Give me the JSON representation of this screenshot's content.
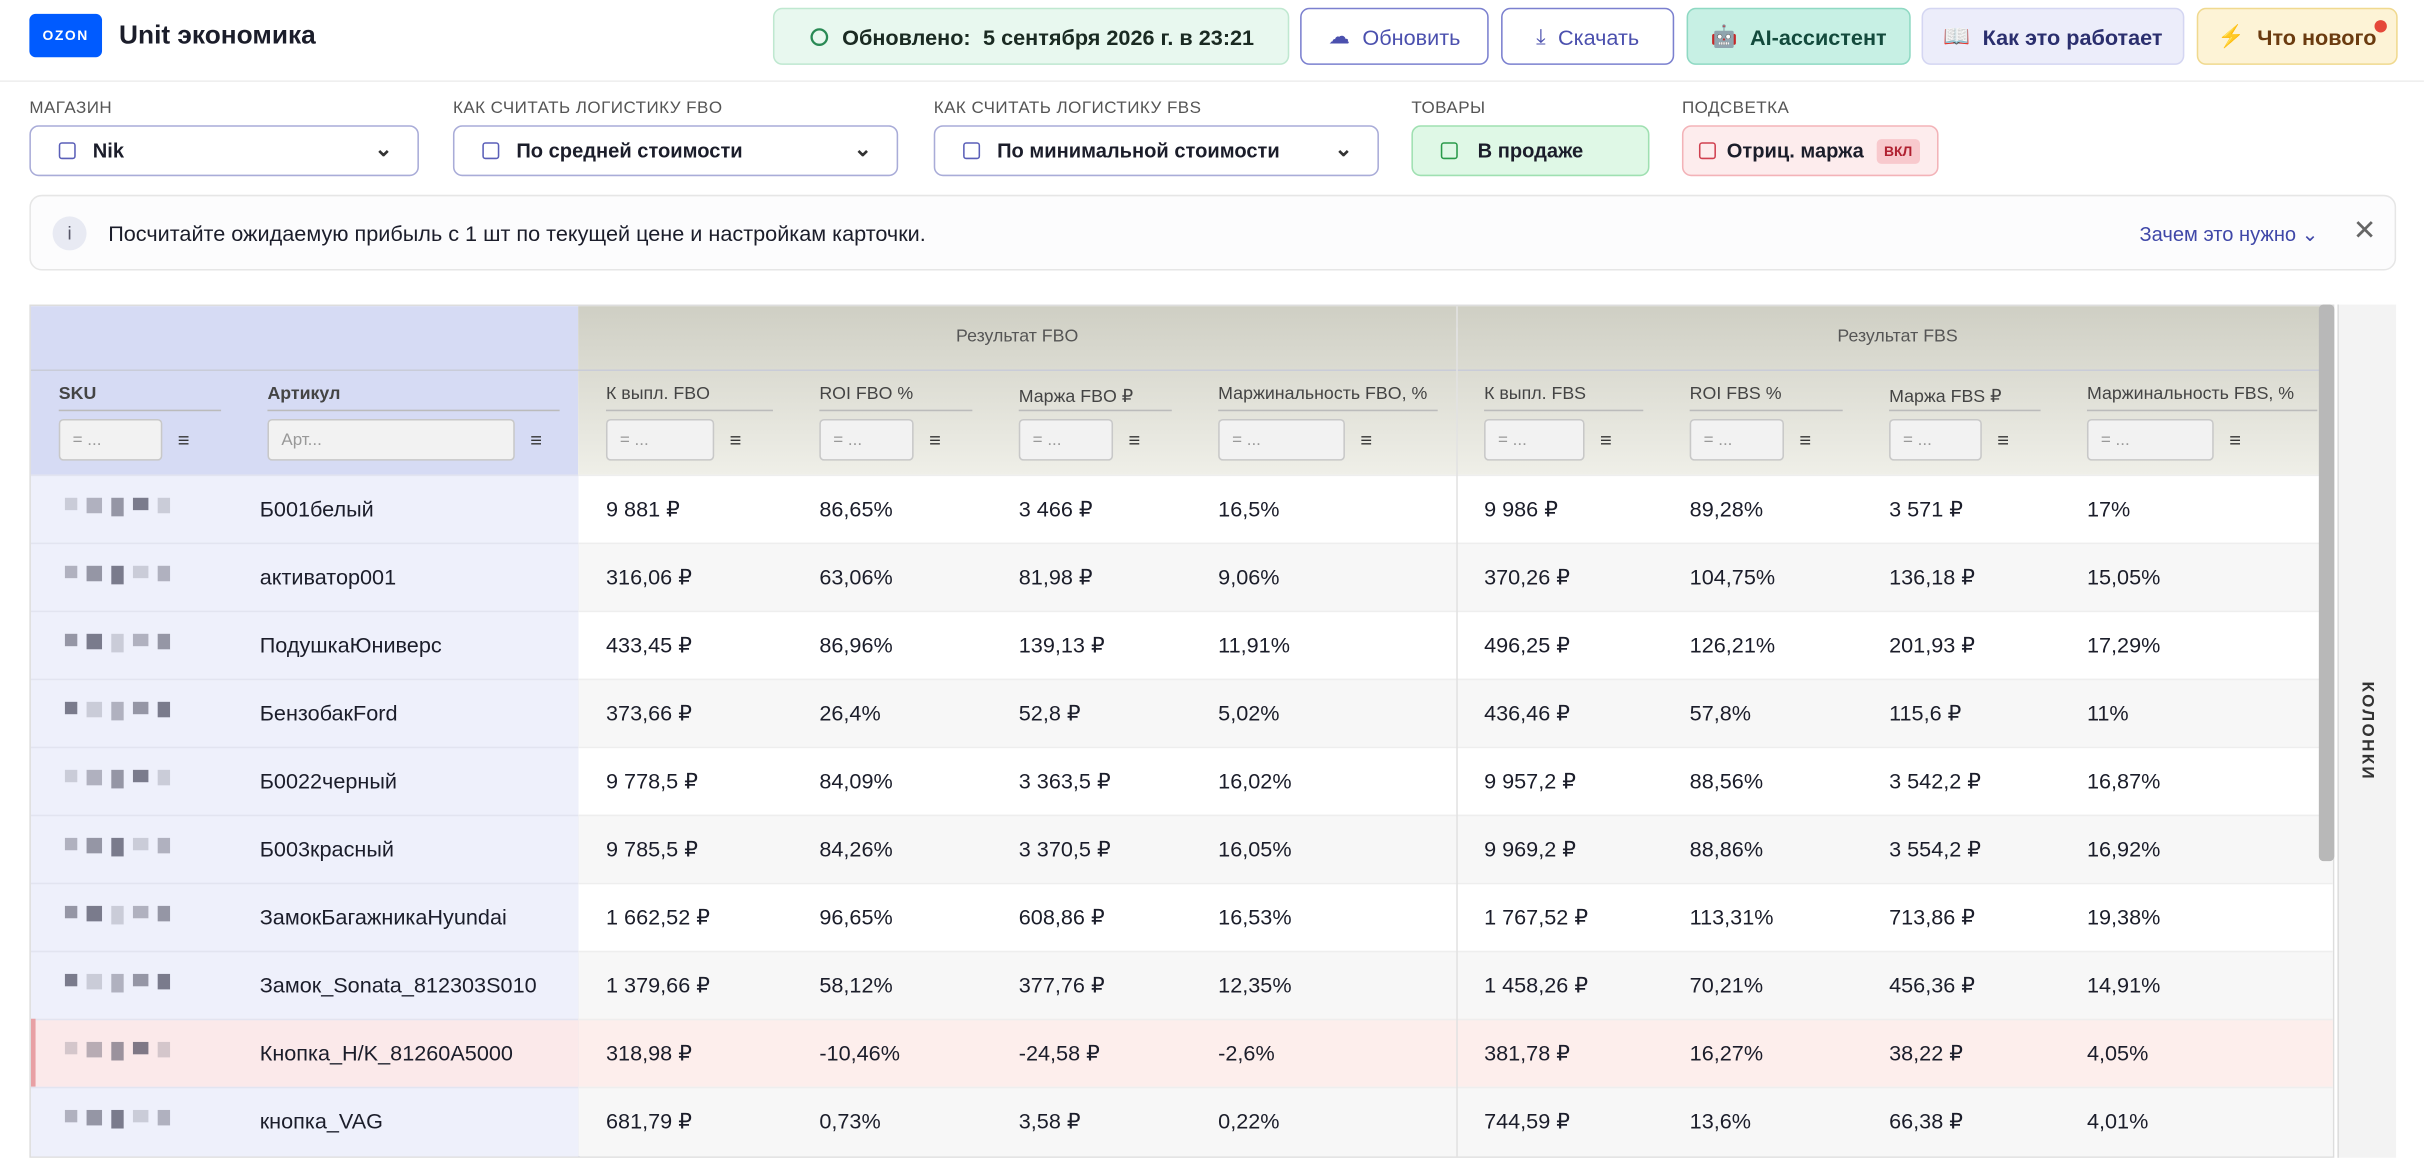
{
  "header": {
    "logo": "OZON",
    "title": "Unit экономика",
    "updated_label": "Обновлено:",
    "updated_value": "5 сентября 2026 г. в 23:21",
    "buttons": [
      "Обновить",
      "Скачать",
      "AI-ассистент",
      "Как это работает",
      "Что нового"
    ]
  },
  "filters": [
    {
      "label": "МАГАЗИН",
      "value": "Nik"
    },
    {
      "label": "КАК СЧИТАТЬ ЛОГИСТИКУ FBO",
      "value": "По средней стоимости"
    },
    {
      "label": "КАК СЧИТАТЬ ЛОГИСТИКУ FBS",
      "value": "По минимальной стоимости"
    },
    {
      "label": "ТОВАРЫ",
      "value": "В продаже"
    },
    {
      "label": "ПОДСВЕТКА",
      "value": "Отриц. маржа",
      "badge": "ВКЛ"
    }
  ],
  "info": {
    "text": "Посчитайте ожидаемую прибыль с 1 шт по текущей цене и настройкам карточки.",
    "link": "Зачем это нужно"
  },
  "table": {
    "groups": [
      "Результат FBO",
      "Результат FBS"
    ],
    "columns": [
      "SKU",
      "Артикул",
      "К выпл. FBO",
      "ROI FBO %",
      "Маржа FBO ₽",
      "Маржинальность FBO, %",
      "К выпл. FBS",
      "ROI FBS %",
      "Маржа FBS ₽",
      "Маржинальность FBS, %"
    ],
    "placeholders": [
      "= ...",
      "Арт...",
      "= ...",
      "= ...",
      "= ...",
      "= ...",
      "= ...",
      "= ...",
      "= ...",
      "= ..."
    ],
    "rows": [
      {
        "article": "Б001белый",
        "cells": [
          "9 881 ₽",
          "86,65%",
          "3 466 ₽",
          "16,5%",
          "9 986 ₽",
          "89,28%",
          "3 571 ₽",
          "17%"
        ]
      },
      {
        "article": "активатор001",
        "cells": [
          "316,06 ₽",
          "63,06%",
          "81,98 ₽",
          "9,06%",
          "370,26 ₽",
          "104,75%",
          "136,18 ₽",
          "15,05%"
        ]
      },
      {
        "article": "ПодушкаЮниверс",
        "cells": [
          "433,45 ₽",
          "86,96%",
          "139,13 ₽",
          "11,91%",
          "496,25 ₽",
          "126,21%",
          "201,93 ₽",
          "17,29%"
        ]
      },
      {
        "article": "БензобакFord",
        "cells": [
          "373,66 ₽",
          "26,4%",
          "52,8 ₽",
          "5,02%",
          "436,46 ₽",
          "57,8%",
          "115,6 ₽",
          "11%"
        ]
      },
      {
        "article": "Б0022черный",
        "cells": [
          "9 778,5 ₽",
          "84,09%",
          "3 363,5 ₽",
          "16,02%",
          "9 957,2 ₽",
          "88,56%",
          "3 542,2 ₽",
          "16,87%"
        ]
      },
      {
        "article": "Б003красный",
        "cells": [
          "9 785,5 ₽",
          "84,26%",
          "3 370,5 ₽",
          "16,05%",
          "9 969,2 ₽",
          "88,86%",
          "3 554,2 ₽",
          "16,92%"
        ]
      },
      {
        "article": "ЗамокБагажникаHyundai",
        "cells": [
          "1 662,52 ₽",
          "96,65%",
          "608,86 ₽",
          "16,53%",
          "1 767,52 ₽",
          "113,31%",
          "713,86 ₽",
          "19,38%"
        ]
      },
      {
        "article": "Замок_Sonata_812303S010",
        "cells": [
          "1 379,66 ₽",
          "58,12%",
          "377,76 ₽",
          "12,35%",
          "1 458,26 ₽",
          "70,21%",
          "456,36 ₽",
          "14,91%"
        ]
      },
      {
        "article": "Кнопка_H/K_81260A5000",
        "cells": [
          "318,98 ₽",
          "-10,46%",
          "-24,58 ₽",
          "-2,6%",
          "381,78 ₽",
          "16,27%",
          "38,22 ₽",
          "4,05%"
        ],
        "highlighted": true
      },
      {
        "article": "кнопка_VAG",
        "cells": [
          "681,79 ₽",
          "0,73%",
          "3,58 ₽",
          "0,22%",
          "744,59 ₽",
          "13,6%",
          "66,38 ₽",
          "4,01%"
        ]
      }
    ]
  },
  "side_panel": "Колонки"
}
